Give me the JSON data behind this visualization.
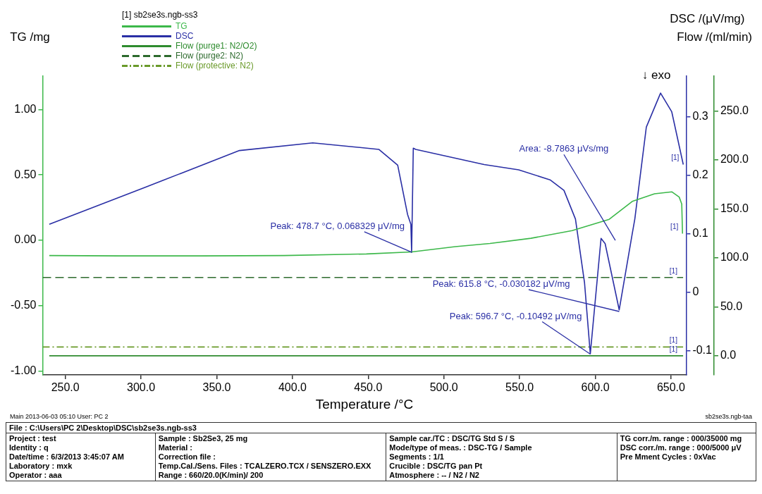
{
  "chart_data": {
    "type": "line",
    "xlabel": "Temperature /°C",
    "ylabel": "TG /mg",
    "y2label": "DSC /(μV/mg)",
    "y3label": "Flow /(ml/min)",
    "legend_title": "[1] sb2se3s.ngb-ss3",
    "legend": "top left",
    "grid": false,
    "xlim": [
      235,
      660
    ],
    "xticks": [
      {
        "value": 250,
        "label": "250.0"
      },
      {
        "value": 300,
        "label": "300.0"
      },
      {
        "value": 350,
        "label": "350.0"
      },
      {
        "value": 400,
        "label": "400.0"
      },
      {
        "value": 450,
        "label": "450.0"
      },
      {
        "value": 500,
        "label": "500.0"
      },
      {
        "value": 550,
        "label": "550.0"
      },
      {
        "value": 600,
        "label": "600.0"
      },
      {
        "value": 650,
        "label": "650.0"
      }
    ],
    "ylim": [
      -1.03,
      1.255
    ],
    "yticks": [
      {
        "value": -1,
        "label": "-1.00"
      },
      {
        "value": -0.5,
        "label": "-0.50"
      },
      {
        "value": 0,
        "label": "0.00"
      },
      {
        "value": 0.5,
        "label": "0.50"
      },
      {
        "value": 1,
        "label": "1.00"
      }
    ],
    "y2lim": [
      -0.141,
      0.369
    ],
    "y2ticks": [
      -0.1,
      0,
      0.1,
      0.2,
      0.3
    ],
    "y3lim": [
      -19.5,
      285.7
    ],
    "y3ticks": [
      {
        "value": 0,
        "label": "0.0"
      },
      {
        "value": 50,
        "label": "50.0"
      },
      {
        "value": 100,
        "label": "100.0"
      },
      {
        "value": 150,
        "label": "150.0"
      },
      {
        "value": 200,
        "label": "200.0"
      },
      {
        "value": 250,
        "label": "250.0"
      }
    ],
    "series": [
      {
        "name": "TG",
        "color": "#3cb84a",
        "axis": "y",
        "line_style": "solid",
        "x": [
          239.4,
          285.7,
          340,
          394.4,
          448.8,
          478.7,
          507.5,
          530.4,
          557.5,
          584.7,
          609.2,
          624.4,
          639.1,
          650.5,
          655.4,
          657.1,
          657.6
        ],
        "values": [
          -0.117,
          -0.12,
          -0.12,
          -0.117,
          -0.105,
          -0.09,
          -0.049,
          -0.025,
          0.015,
          0.073,
          0.16,
          0.297,
          0.355,
          0.37,
          0.33,
          0.277,
          0.05
        ]
      },
      {
        "name": "DSC",
        "color": "#2a2fa5",
        "axis": "y2",
        "line_style": "solid",
        "x": [
          239.4,
          302.5,
          365,
          413.4,
          457,
          469.5,
          476,
          478.2,
          478.7,
          479.8,
          481.4,
          526.6,
          549.4,
          570.1,
          579.3,
          586.9,
          592.9,
          596.7,
          603.8,
          606.5,
          615.8,
          624.4,
          626.1,
          633.7,
          643.1,
          650.5,
          658.1
        ],
        "values": [
          0.116,
          0.179,
          0.242,
          0.255,
          0.244,
          0.217,
          0.133,
          0.116,
          0.068,
          0.246,
          0.244,
          0.218,
          0.209,
          0.192,
          0.174,
          0.125,
          0.016,
          -0.105,
          0.092,
          0.083,
          -0.03,
          0.1,
          0.125,
          0.282,
          0.34,
          0.308,
          0.218
        ]
      },
      {
        "name": "Flow (purge1: N2/O2)",
        "color": "#2e8b2e",
        "axis": "y3",
        "line_style": "solid",
        "x": [
          239.4,
          658
        ],
        "values": [
          0,
          0
        ]
      },
      {
        "name": "Flow (purge2: N2)",
        "color": "#2d6a2d",
        "axis": "y3",
        "line_style": "dashed",
        "x": [
          235,
          658
        ],
        "values": [
          80,
          80
        ]
      },
      {
        "name": "Flow (protective: N2)",
        "color": "#6a9a2a",
        "axis": "y3",
        "line_style": "dotted",
        "x": [
          235,
          658
        ],
        "values": [
          9,
          9
        ]
      }
    ],
    "annotations": [
      {
        "text": "Peak: 478.7 °C, 0.068329 μV/mg",
        "x": 478.7,
        "y": -0.092
      },
      {
        "text": "Peak: 615.8 °C, -0.030182 μV/mg",
        "x": 615.8,
        "y": -0.545
      },
      {
        "text": "Peak: 596.7 °C, -0.10492 μV/mg",
        "x": 596.7,
        "y": -0.871
      },
      {
        "text": "[1]",
        "x": 658.1,
        "y": 0.578
      },
      {
        "text": "[1]",
        "x": 657.6,
        "y": 0.05
      },
      {
        "text": "[1]",
        "x": 657,
        "y": -0.285
      },
      {
        "text": "[1]",
        "x": 657,
        "y": -0.817
      },
      {
        "text": "[1]",
        "x": 657,
        "y": -0.884
      },
      "Area: -8.7863 μVs/mg",
      "↓ exo",
      "Main   2013-06-03 05:10   User: PC 2",
      "sb2se3s.ngb-taa",
      "File : C:\\Users\\PC 2\\Desktop\\DSC\\sb2se3s.ngb-ss3",
      "Project : test",
      "Identity : q",
      "Date/time : 6/3/2013 3:45:07 AM",
      "Laboratory : mxk",
      "Operator : aaa",
      "Sample : Sb2Se3, 25 mg",
      "Material :",
      "Correction file :",
      "Temp.Cal./Sens. Files : TCALZERO.TCX / SENSZERO.EXX",
      "Range : 660/20.0(K/min)/ 200",
      "Sample car./TC : DSC/TG Std S / S",
      "Mode/type of meas. : DSC-TG / Sample",
      "Segments : 1/1",
      "Crucible : DSC/TG pan Pt",
      "Atmosphere : -- / N2 / N2",
      "TG corr./m. range : 000/35000 mg",
      "DSC corr./m. range : 000/5000 μV",
      "Pre Mment Cycles : 0xVac"
    ]
  }
}
